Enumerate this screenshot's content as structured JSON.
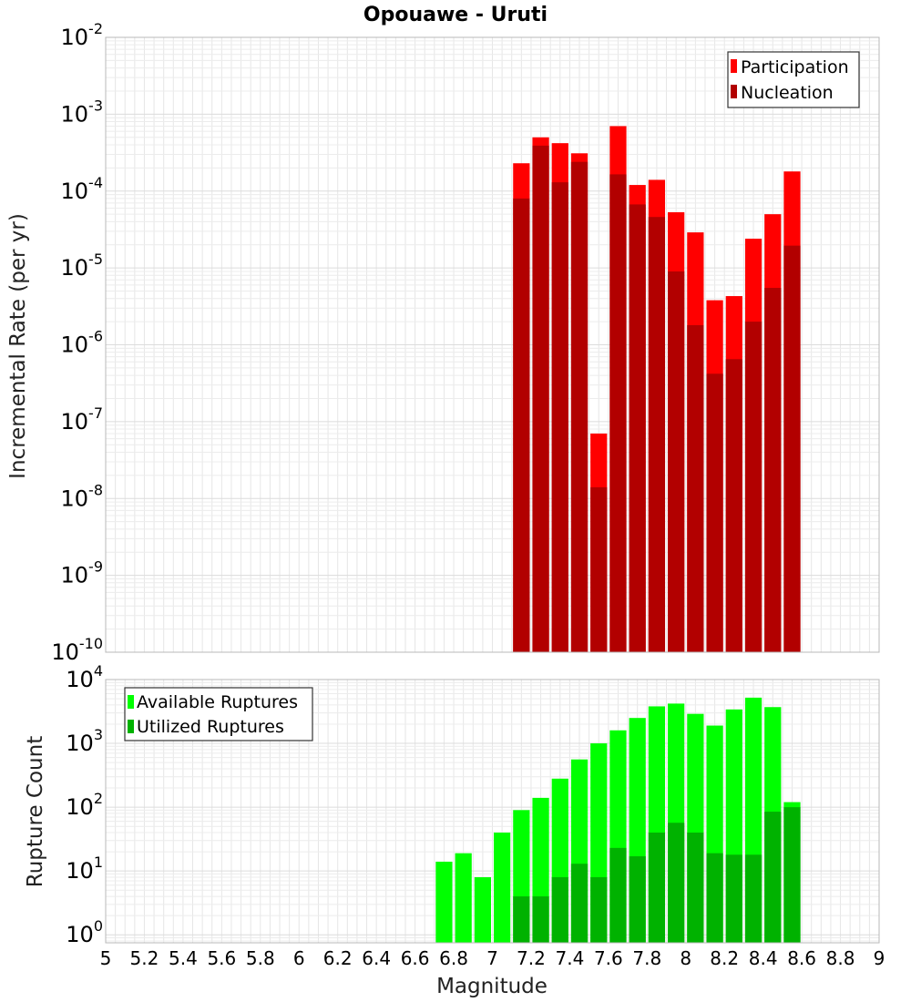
{
  "title": "Opouawe - Uruti",
  "colors": {
    "participation": "#ff0000",
    "nucleation": "#b20000",
    "available": "#00ff00",
    "utilized": "#00b200",
    "grid": "#e6e6e6",
    "frame": "#b8b8b8"
  },
  "chart_data": [
    {
      "type": "bar",
      "title": "Opouawe - Uruti",
      "xlabel": "Magnitude",
      "ylabel": "Incremental Rate (per yr)",
      "yscale": "log",
      "xlim": [
        5,
        9
      ],
      "ylim": [
        1e-10,
        0.01
      ],
      "grid": true,
      "legend_position": "top-right",
      "y_ticks": [
        {
          "base": "10",
          "exp": "-2"
        },
        {
          "base": "10",
          "exp": "-3"
        },
        {
          "base": "10",
          "exp": "-4"
        },
        {
          "base": "10",
          "exp": "-5"
        },
        {
          "base": "10",
          "exp": "-6"
        },
        {
          "base": "10",
          "exp": "-7"
        },
        {
          "base": "10",
          "exp": "-8"
        },
        {
          "base": "10",
          "exp": "-9"
        },
        {
          "base": "10",
          "exp": "-10"
        }
      ],
      "y_tick_values": [
        0.01,
        0.001,
        0.0001,
        1e-05,
        1e-06,
        1e-07,
        1e-08,
        1e-09,
        1e-10
      ],
      "x": [
        7.15,
        7.25,
        7.35,
        7.45,
        7.55,
        7.65,
        7.75,
        7.85,
        7.95,
        8.05,
        8.15,
        8.25,
        8.35,
        8.45,
        8.55
      ],
      "series": [
        {
          "name": "Participation",
          "values": [
            0.00023,
            0.0005,
            0.00042,
            0.00031,
            7e-08,
            0.0007,
            0.00012,
            0.00014,
            5.3e-05,
            2.9e-05,
            3.8e-06,
            4.3e-06,
            2.4e-05,
            5e-05,
            0.00018
          ]
        },
        {
          "name": "Nucleation",
          "values": [
            8e-05,
            0.00039,
            0.00013,
            0.00024,
            1.4e-08,
            0.000165,
            6.7e-05,
            4.6e-05,
            9e-06,
            1.8e-06,
            4.2e-07,
            6.5e-07,
            2e-06,
            5.5e-06,
            1.95e-05
          ]
        }
      ]
    },
    {
      "type": "bar",
      "xlabel": "Magnitude",
      "ylabel": "Rupture Count",
      "yscale": "log",
      "xlim": [
        5,
        9
      ],
      "ylim": [
        0.75,
        10000
      ],
      "grid": true,
      "legend_position": "top-left",
      "x_ticks": [
        "5",
        "5.2",
        "5.4",
        "5.6",
        "5.8",
        "6",
        "6.2",
        "6.4",
        "6.6",
        "6.8",
        "7",
        "7.2",
        "7.4",
        "7.6",
        "7.8",
        "8",
        "8.2",
        "8.4",
        "8.6",
        "8.8",
        "9"
      ],
      "y_ticks": [
        {
          "base": "10",
          "exp": "4"
        },
        {
          "base": "10",
          "exp": "3"
        },
        {
          "base": "10",
          "exp": "2"
        },
        {
          "base": "10",
          "exp": "1"
        },
        {
          "base": "10",
          "exp": "0"
        }
      ],
      "y_tick_values": [
        10000,
        1000,
        100,
        10,
        1
      ],
      "x": [
        6.75,
        6.85,
        6.95,
        7.05,
        7.15,
        7.25,
        7.35,
        7.45,
        7.55,
        7.65,
        7.75,
        7.85,
        7.95,
        8.05,
        8.15,
        8.25,
        8.35,
        8.45,
        8.55
      ],
      "series": [
        {
          "name": "Available Ruptures",
          "values": [
            14,
            19,
            8,
            40,
            90,
            140,
            280,
            560,
            1000,
            1600,
            2500,
            3800,
            4200,
            2900,
            1900,
            3400,
            5200,
            3700,
            120
          ]
        },
        {
          "name": "Utilized Ruptures",
          "values": [
            null,
            null,
            null,
            null,
            4,
            4,
            8,
            13,
            8,
            23,
            17,
            40,
            57,
            40,
            19,
            18,
            18,
            85,
            100
          ]
        }
      ]
    }
  ]
}
